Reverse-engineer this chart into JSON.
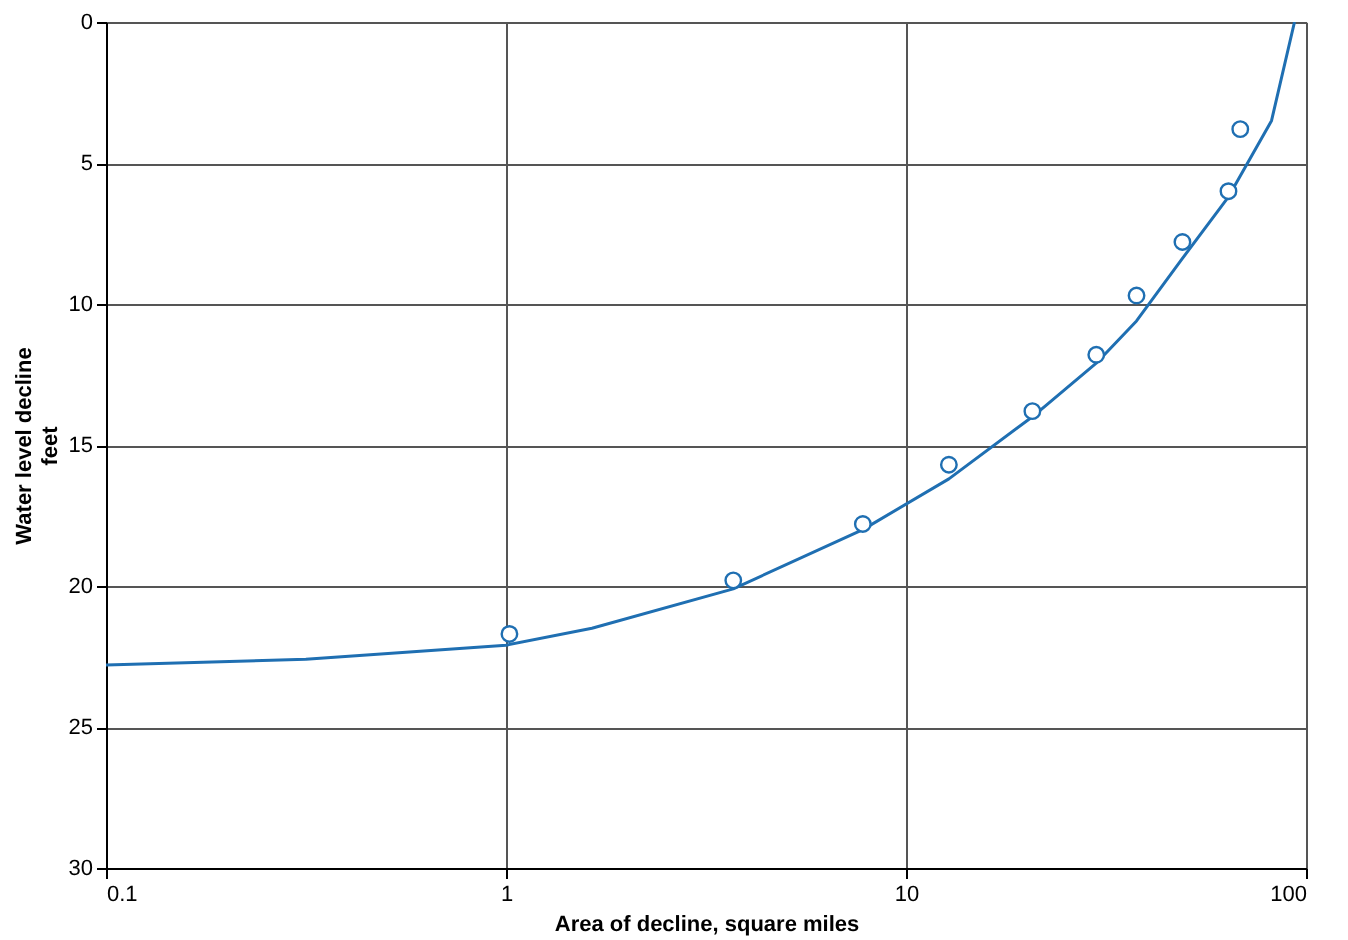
{
  "chart_data": {
    "type": "scatter",
    "xlabel": "Area of decline, square miles",
    "ylabel": "Water level decline\nfeet",
    "log": "x",
    "xlim": [
      0.1,
      100
    ],
    "xticks": [
      0.1,
      1,
      10,
      100
    ],
    "ylim": [
      30,
      0
    ],
    "yticks": [
      0,
      5,
      10,
      15,
      20,
      25,
      30
    ],
    "grid": true,
    "series": [
      {
        "color": "#1f6fb2",
        "marker": "circle",
        "x": [
          1.02,
          3.7,
          7.8,
          12.8,
          20.7,
          29.9,
          37.7,
          49.1,
          64.0,
          68.5
        ],
        "values": [
          21.7,
          19.8,
          17.8,
          15.7,
          13.8,
          11.8,
          9.7,
          7.8,
          6.0,
          3.8
        ]
      },
      {
        "type": "line",
        "color": "#1f6fb2",
        "x": [
          0.1,
          0.316,
          1,
          1.64,
          3.7,
          7.8,
          12.8,
          20.7,
          29.9,
          37.7,
          49,
          64,
          82,
          93.6
        ],
        "values": [
          22.8,
          22.6,
          22.1,
          21.5,
          20.1,
          18.0,
          16.2,
          14.0,
          12.1,
          10.6,
          8.4,
          6.2,
          3.5,
          0
        ]
      }
    ]
  }
}
